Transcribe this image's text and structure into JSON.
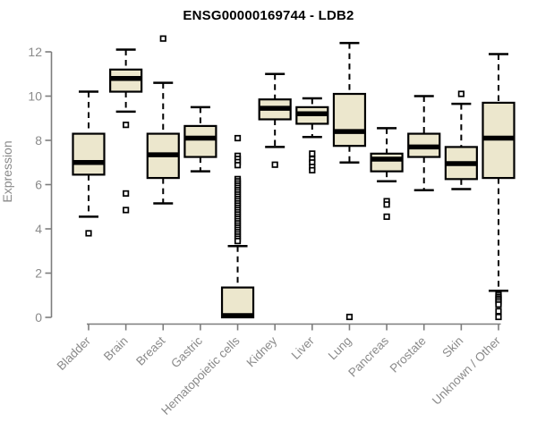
{
  "title": "ENSG00000169744 - LDB2",
  "colors": {
    "background": "#ffffff",
    "box_fill": "#ece7cd",
    "box_stroke": "#000000",
    "median": "#000000",
    "whisker": "#000000",
    "outlier_stroke": "#000000",
    "axis_line": "#7d7d7d",
    "axis_text": "#8a8a8a",
    "title_text": "#000000"
  },
  "chart_data": {
    "type": "boxplot",
    "title": "ENSG00000169744 - LDB2",
    "xlabel": "",
    "ylabel": "Expression",
    "ylim": [
      0,
      12.5
    ],
    "yticks": [
      0,
      2,
      4,
      6,
      8,
      10,
      12
    ],
    "grid": false,
    "legend": false,
    "categories": [
      "Bladder",
      "Brain",
      "Breast",
      "Gastric",
      "Hematopoietic cells",
      "Kidney",
      "Liver",
      "Lung",
      "Pancreas",
      "Prostate",
      "Skin",
      "Unknown / Other"
    ],
    "series": [
      {
        "name": "Bladder",
        "whisker_low": 4.55,
        "q1": 6.45,
        "median": 7.0,
        "q3": 8.3,
        "whisker_high": 10.2,
        "outliers": [
          3.8
        ]
      },
      {
        "name": "Brain",
        "whisker_low": 9.3,
        "q1": 10.2,
        "median": 10.8,
        "q3": 11.2,
        "whisker_high": 12.1,
        "outliers": [
          8.7,
          5.6,
          4.85
        ]
      },
      {
        "name": "Breast",
        "whisker_low": 5.15,
        "q1": 6.3,
        "median": 7.35,
        "q3": 8.3,
        "whisker_high": 10.6,
        "outliers": [
          12.6
        ]
      },
      {
        "name": "Gastric",
        "whisker_low": 6.6,
        "q1": 7.25,
        "median": 8.1,
        "q3": 8.65,
        "whisker_high": 9.5,
        "outliers": []
      },
      {
        "name": "Hematopoietic cells",
        "whisker_low": 0.0,
        "q1": 0.0,
        "median": 0.08,
        "q3": 1.35,
        "whisker_high": 3.22,
        "outliers": [
          8.1,
          7.3,
          7.16,
          7.02,
          6.88,
          6.25,
          6.15,
          6.05,
          5.95,
          5.85,
          5.75,
          5.65,
          5.55,
          5.45,
          5.35,
          5.25,
          5.15,
          5.05,
          4.95,
          4.85,
          4.75,
          4.65,
          4.55,
          4.45,
          4.35,
          4.25,
          4.15,
          4.05,
          3.95,
          3.85,
          3.75,
          3.65,
          3.55,
          3.45
        ]
      },
      {
        "name": "Kidney",
        "whisker_low": 7.7,
        "q1": 8.95,
        "median": 9.45,
        "q3": 9.85,
        "whisker_high": 11.0,
        "outliers": [
          6.9
        ]
      },
      {
        "name": "Liver",
        "whisker_low": 8.15,
        "q1": 8.75,
        "median": 9.2,
        "q3": 9.5,
        "whisker_high": 9.9,
        "outliers": [
          7.4,
          7.15,
          7.0,
          6.8,
          6.65
        ]
      },
      {
        "name": "Lung",
        "whisker_low": 7.0,
        "q1": 7.75,
        "median": 8.4,
        "q3": 10.1,
        "whisker_high": 12.4,
        "outliers": [
          0.02
        ]
      },
      {
        "name": "Pancreas",
        "whisker_low": 6.15,
        "q1": 6.6,
        "median": 7.15,
        "q3": 7.4,
        "whisker_high": 8.55,
        "outliers": [
          5.25,
          5.1,
          4.55
        ]
      },
      {
        "name": "Prostate",
        "whisker_low": 5.75,
        "q1": 7.25,
        "median": 7.7,
        "q3": 8.3,
        "whisker_high": 10.0,
        "outliers": []
      },
      {
        "name": "Skin",
        "whisker_low": 5.8,
        "q1": 6.25,
        "median": 6.95,
        "q3": 7.7,
        "whisker_high": 9.65,
        "outliers": [
          10.1
        ]
      },
      {
        "name": "Unknown / Other",
        "whisker_low": 1.2,
        "q1": 6.3,
        "median": 8.1,
        "q3": 9.7,
        "whisker_high": 11.9,
        "outliers": [
          1.02,
          0.93,
          0.85,
          0.77,
          0.68,
          0.58,
          0.28,
          0.02
        ]
      }
    ]
  }
}
